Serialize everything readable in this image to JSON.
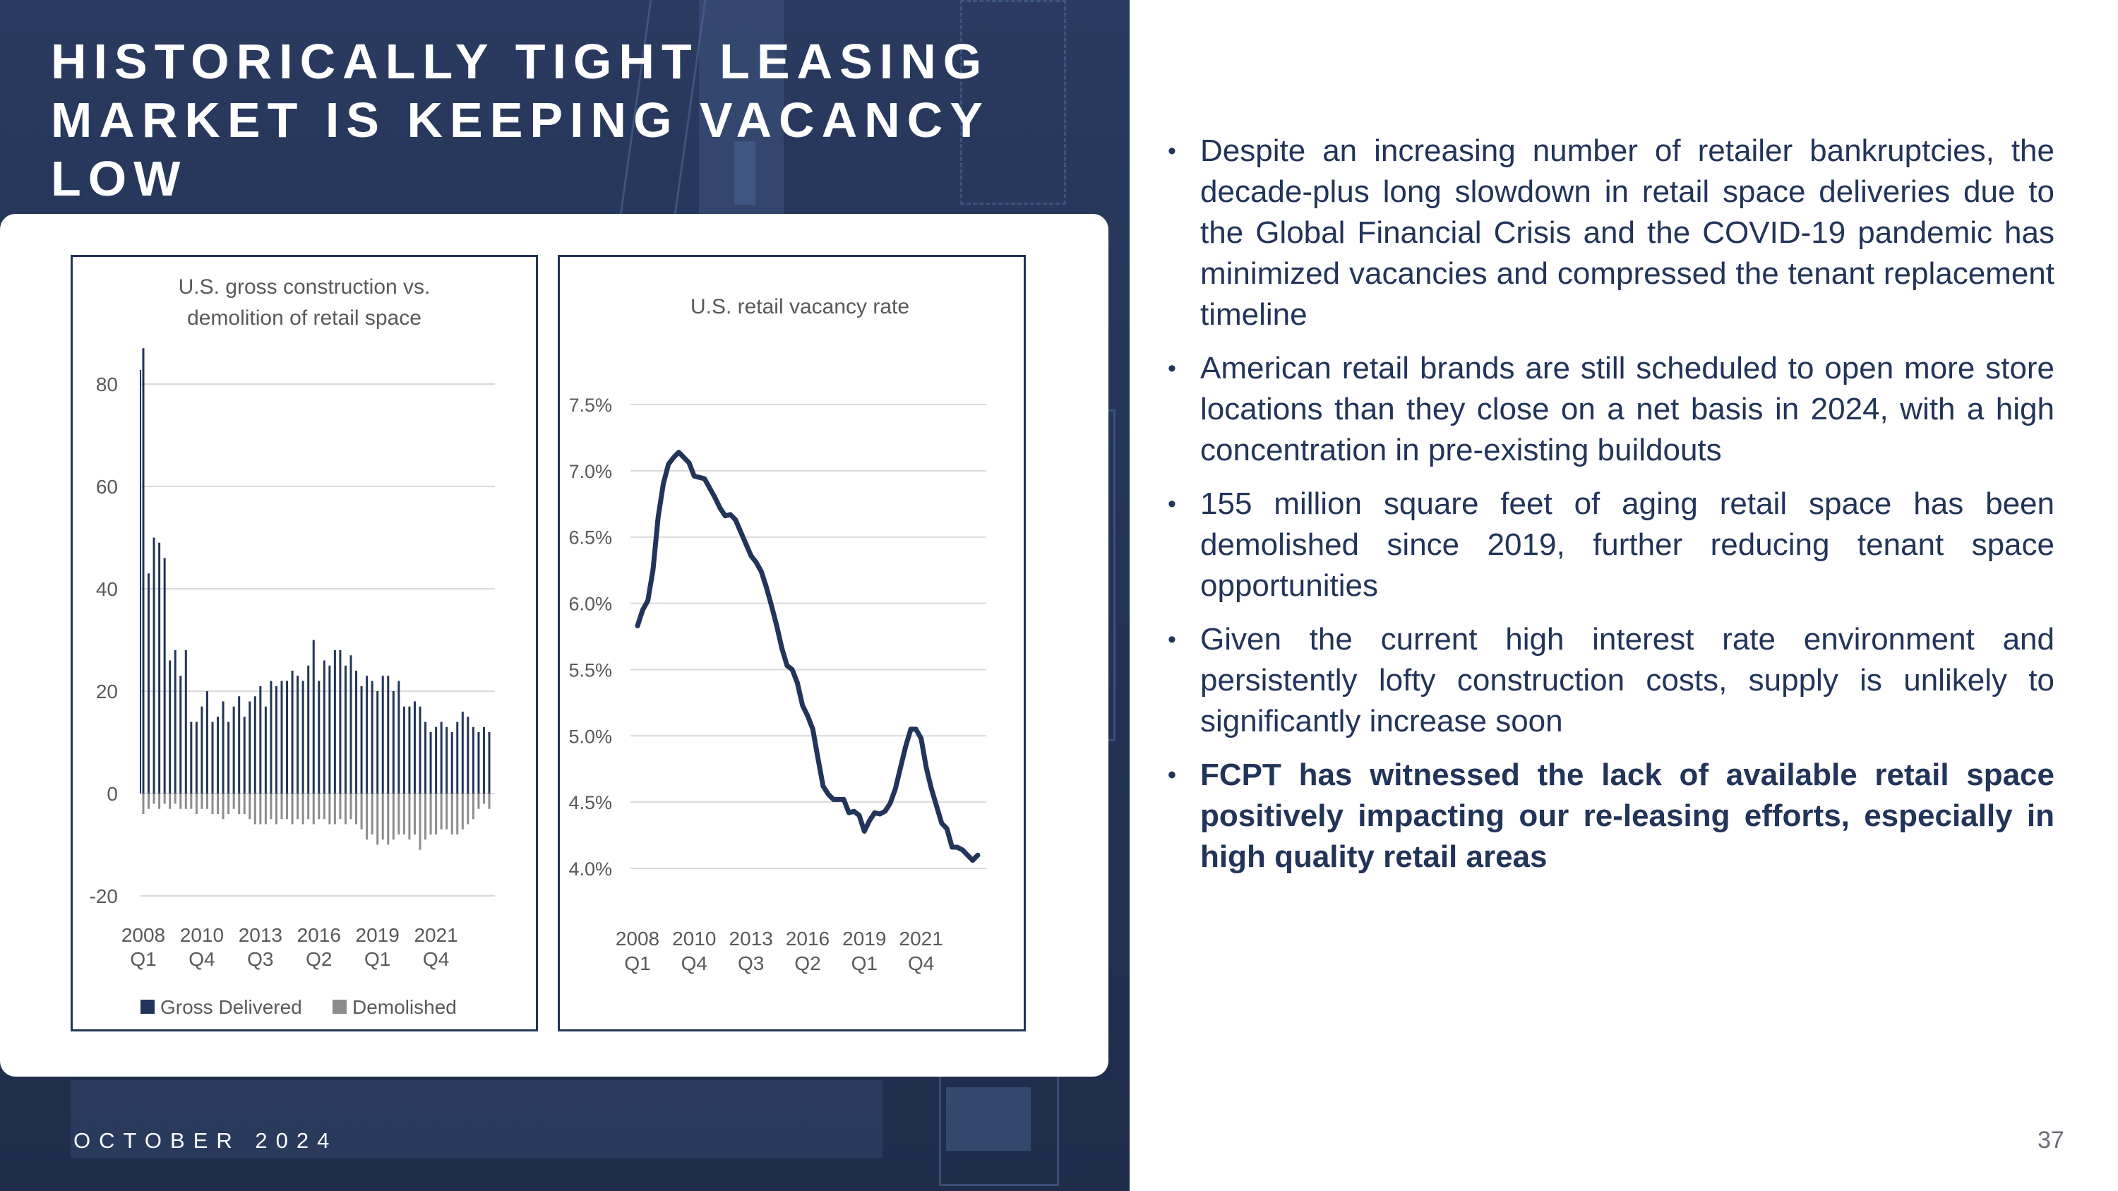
{
  "slide": {
    "title_lines": [
      "HISTORICALLY TIGHT LEASING",
      "MARKET IS KEEPING VACANCY",
      "LOW"
    ],
    "footer_date": "OCTOBER 2024",
    "page_number": "37"
  },
  "bullets": [
    {
      "text": "Despite an increasing number of retailer bankruptcies, the decade-plus long slowdown in retail space deliveries due to the Global Financial Crisis and the COVID-19 pandemic has minimized vacancies and compressed the tenant replacement timeline",
      "bold": false
    },
    {
      "text": "American retail brands are still scheduled to open more store locations than they close on a net basis in 2024, with a high concentration in pre-existing buildouts",
      "bold": false
    },
    {
      "text": "155 million square feet of aging retail space has been demolished since 2019, further reducing tenant space opportunities",
      "bold": false
    },
    {
      "text": "Given the current high interest rate environment and persistently lofty construction costs, supply is unlikely to significantly increase soon",
      "bold": false
    },
    {
      "text": "FCPT has witnessed the lack of available retail space positively impacting our re-leasing efforts, especially in high quality retail areas",
      "bold": true
    }
  ],
  "colors": {
    "navy": "#223459",
    "gross_delivered": "#223459",
    "demolished": "#8c8c8c",
    "grid": "#d9d9d9",
    "axis_text": "#595959"
  },
  "chart_data": [
    {
      "type": "bar",
      "title_lines": [
        "U.S. gross construction vs.",
        "demolition of retail space"
      ],
      "ylim": [
        -20,
        80
      ],
      "yticks": [
        80,
        60,
        40,
        20,
        0,
        -20
      ],
      "xtick_labels": [
        [
          "2008",
          "Q1"
        ],
        [
          "2010",
          "Q4"
        ],
        [
          "2013",
          "Q3"
        ],
        [
          "2016",
          "Q2"
        ],
        [
          "2019",
          "Q1"
        ],
        [
          "2021",
          "Q4"
        ]
      ],
      "xtick_indices": [
        0,
        11,
        22,
        33,
        44,
        55
      ],
      "grid": true,
      "legend_position": "bottom",
      "series": [
        {
          "name": "Gross Delivered",
          "values": [
            87,
            43,
            50,
            49,
            46,
            26,
            28,
            23,
            28,
            14,
            14,
            17,
            20,
            14,
            15,
            18,
            14,
            17,
            19,
            15,
            18,
            19,
            21,
            17,
            22,
            21,
            22,
            22,
            24,
            23,
            22,
            25,
            30,
            22,
            26,
            25,
            28,
            28,
            25,
            27,
            24,
            21,
            23,
            22,
            20,
            23,
            23,
            20,
            22,
            17,
            17,
            18,
            17,
            14,
            12,
            13,
            14,
            13,
            12,
            14,
            16,
            15,
            13,
            12,
            13,
            12
          ]
        },
        {
          "name": "Demolished",
          "values": [
            -4,
            -3,
            -2,
            -3,
            -2,
            -3,
            -2,
            -3,
            -3,
            -3,
            -4,
            -3,
            -3,
            -4,
            -4,
            -5,
            -4,
            -3,
            -4,
            -4,
            -5,
            -6,
            -6,
            -6,
            -5,
            -6,
            -5,
            -5,
            -6,
            -5,
            -6,
            -5,
            -6,
            -5,
            -5,
            -6,
            -6,
            -5,
            -6,
            -5,
            -6,
            -7,
            -9,
            -8,
            -10,
            -9,
            -10,
            -9,
            -8,
            -8,
            -9,
            -8,
            -11,
            -9,
            -8,
            -8,
            -7,
            -7,
            -8,
            -8,
            -7,
            -6,
            -5,
            -3,
            -2,
            -3
          ]
        }
      ]
    },
    {
      "type": "line",
      "title": "U.S. retail vacancy rate",
      "ylim": [
        4.0,
        7.5
      ],
      "yticks": [
        7.5,
        7.0,
        6.5,
        6.0,
        5.5,
        5.0,
        4.5,
        4.0
      ],
      "ytick_labels": [
        "7.5%",
        "7.0%",
        "6.5%",
        "6.0%",
        "5.5%",
        "5.0%",
        "4.5%",
        "4.0%"
      ],
      "xtick_labels": [
        [
          "2008",
          "Q1"
        ],
        [
          "2010",
          "Q4"
        ],
        [
          "2013",
          "Q3"
        ],
        [
          "2016",
          "Q2"
        ],
        [
          "2019",
          "Q1"
        ],
        [
          "2021",
          "Q4"
        ]
      ],
      "xtick_indices": [
        0,
        11,
        22,
        33,
        44,
        55
      ],
      "grid": true,
      "series": [
        {
          "name": "",
          "values": [
            5.83,
            5.95,
            6.02,
            6.25,
            6.65,
            6.9,
            7.05,
            7.1,
            7.14,
            7.1,
            7.06,
            6.96,
            6.95,
            6.94,
            6.87,
            6.8,
            6.72,
            6.66,
            6.67,
            6.63,
            6.54,
            6.45,
            6.36,
            6.31,
            6.24,
            6.12,
            5.98,
            5.83,
            5.66,
            5.53,
            5.5,
            5.4,
            5.23,
            5.15,
            5.05,
            4.83,
            4.62,
            4.56,
            4.52,
            4.52,
            4.52,
            4.42,
            4.43,
            4.4,
            4.28,
            4.36,
            4.42,
            4.41,
            4.43,
            4.49,
            4.6,
            4.76,
            4.92,
            5.05,
            5.05,
            4.98,
            4.76,
            4.6,
            4.47,
            4.34,
            4.3,
            4.16,
            4.16,
            4.14,
            4.1,
            4.06,
            4.1
          ]
        }
      ]
    }
  ]
}
